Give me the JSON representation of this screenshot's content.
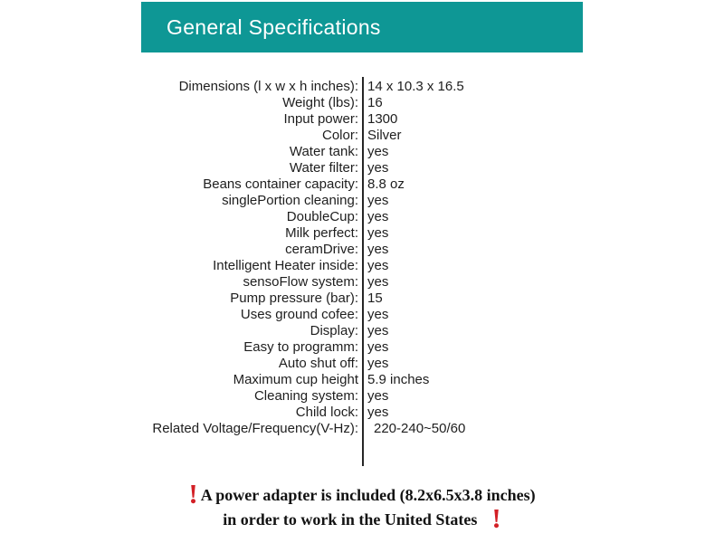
{
  "header": {
    "title": "General Specifications",
    "bg_color": "#0e9795",
    "text_color": "#ffffff"
  },
  "table": {
    "rows": [
      {
        "label": "Dimensions (l x w x h inches):",
        "value": "14 x 10.3 x 16.5"
      },
      {
        "label": "Weight (lbs):",
        "value": "16"
      },
      {
        "label": "Input power:",
        "value": "1300"
      },
      {
        "label": "Color:",
        "value": "Silver"
      },
      {
        "label": "Water tank:",
        "value": "yes"
      },
      {
        "label": "Water filter:",
        "value": "yes"
      },
      {
        "label": "Beans container capacity:",
        "value": "8.8 oz"
      },
      {
        "label": "singlePortion cleaning:",
        "value": "yes"
      },
      {
        "label": "DoubleCup:",
        "value": "yes"
      },
      {
        "label": "Milk perfect:",
        "value": "yes"
      },
      {
        "label": "ceramDrive:",
        "value": "yes"
      },
      {
        "label": "Intelligent Heater inside:",
        "value": "yes"
      },
      {
        "label": "sensoFlow system:",
        "value": "yes"
      },
      {
        "label": "Pump pressure (bar):",
        "value": "15"
      },
      {
        "label": "Uses ground cofee:",
        "value": "yes"
      },
      {
        "label": "Display:",
        "value": "yes"
      },
      {
        "label": "Easy to programm:",
        "value": "yes"
      },
      {
        "label": "Auto shut off:",
        "value": "yes"
      },
      {
        "label": "Maximum cup height",
        "value": "5.9 inches"
      },
      {
        "label": "Cleaning system:",
        "value": "yes"
      },
      {
        "label": "Child lock:",
        "value": "yes"
      },
      {
        "label": "Related Voltage/Frequency(V-Hz):",
        "value": "220-240~50/60"
      }
    ]
  },
  "footer": {
    "exclamation": "!",
    "line1": "A power adapter is included (8.2x6.5x3.8 inches)",
    "line2": "in order to work in the United States",
    "accent_color": "#d32026"
  }
}
